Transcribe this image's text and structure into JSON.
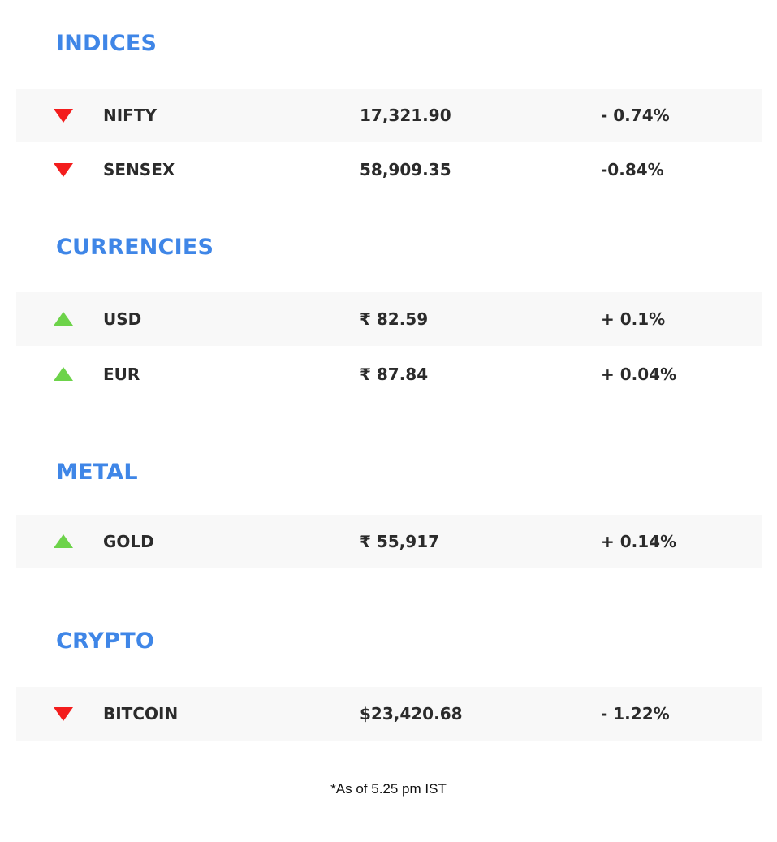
{
  "sections": {
    "indices": {
      "title": "INDICES",
      "rows": [
        {
          "direction": "down",
          "name": "NIFTY",
          "value": "17,321.90",
          "change": "- 0.74%"
        },
        {
          "direction": "down",
          "name": "SENSEX",
          "value": "58,909.35",
          "change": "-0.84%"
        }
      ]
    },
    "currencies": {
      "title": "CURRENCIES",
      "rows": [
        {
          "direction": "up",
          "name": "USD",
          "value": "₹ 82.59",
          "change": "+ 0.1%"
        },
        {
          "direction": "up",
          "name": "EUR",
          "value": "₹ 87.84",
          "change": "+ 0.04%"
        }
      ]
    },
    "metal": {
      "title": "METAL",
      "rows": [
        {
          "direction": "up",
          "name": "GOLD",
          "value": "₹ 55,917",
          "change": "+ 0.14%"
        }
      ]
    },
    "crypto": {
      "title": "CRYPTO",
      "rows": [
        {
          "direction": "down",
          "name": "BITCOIN",
          "value": "$23,420.68",
          "change": "- 1.22%"
        }
      ]
    }
  },
  "footnote": "*As of 5.25 pm IST",
  "colors": {
    "heading": "#3f86e7",
    "down": "#f31d1d",
    "up": "#6dd34a",
    "row_shade": "#f8f8f8",
    "text": "#2b2b2b"
  },
  "icons": {
    "down": "triangle-down-icon",
    "up": "triangle-up-icon"
  }
}
